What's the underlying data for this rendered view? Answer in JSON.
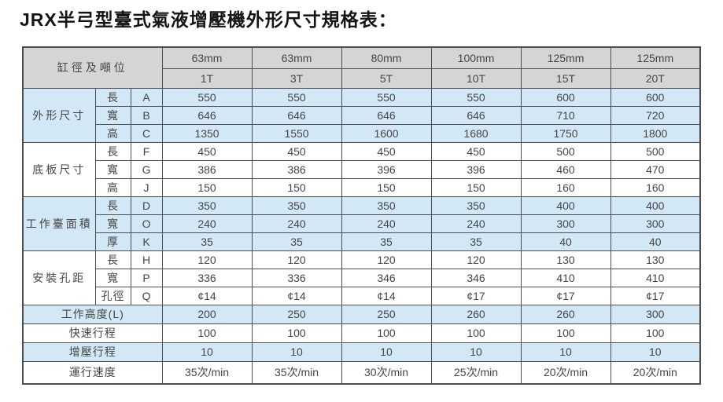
{
  "title": "JRX半弓型臺式氣液增壓機外形尺寸規格表：",
  "colors": {
    "header_bg": "#d5d5d5",
    "blue_row_bg": "#d3e8f6",
    "white_row_bg": "#ffffff",
    "border": "#4d4d4d",
    "text": "#454545",
    "title_text": "#141414"
  },
  "table": {
    "corner_label": "缸徑及噸位",
    "columns": [
      {
        "diameter": "63mm",
        "tonnage": "1T"
      },
      {
        "diameter": "63mm",
        "tonnage": "3T"
      },
      {
        "diameter": "80mm",
        "tonnage": "5T"
      },
      {
        "diameter": "100mm",
        "tonnage": "10T"
      },
      {
        "diameter": "125mm",
        "tonnage": "15T"
      },
      {
        "diameter": "125mm",
        "tonnage": "20T"
      }
    ],
    "groups": [
      {
        "label": "外形尺寸",
        "shade": "blue",
        "rows": [
          {
            "dim": "長",
            "code": "A",
            "values": [
              "550",
              "550",
              "550",
              "550",
              "600",
              "600"
            ]
          },
          {
            "dim": "寬",
            "code": "B",
            "values": [
              "646",
              "646",
              "646",
              "646",
              "710",
              "720"
            ]
          },
          {
            "dim": "高",
            "code": "C",
            "values": [
              "1350",
              "1550",
              "1600",
              "1680",
              "1750",
              "1800"
            ]
          }
        ]
      },
      {
        "label": "底板尺寸",
        "shade": "white",
        "rows": [
          {
            "dim": "長",
            "code": "F",
            "values": [
              "450",
              "450",
              "450",
              "450",
              "500",
              "500"
            ]
          },
          {
            "dim": "寬",
            "code": "G",
            "values": [
              "386",
              "386",
              "396",
              "396",
              "460",
              "470"
            ]
          },
          {
            "dim": "高",
            "code": "J",
            "values": [
              "150",
              "150",
              "150",
              "150",
              "160",
              "160"
            ]
          }
        ]
      },
      {
        "label": "工作臺面積",
        "shade": "blue",
        "rows": [
          {
            "dim": "長",
            "code": "D",
            "values": [
              "350",
              "350",
              "350",
              "350",
              "400",
              "400"
            ]
          },
          {
            "dim": "寬",
            "code": "O",
            "values": [
              "240",
              "240",
              "240",
              "240",
              "300",
              "300"
            ]
          },
          {
            "dim": "厚",
            "code": "K",
            "values": [
              "35",
              "35",
              "35",
              "35",
              "40",
              "40"
            ]
          }
        ]
      },
      {
        "label": "安裝孔距",
        "shade": "white",
        "rows": [
          {
            "dim": "長",
            "code": "H",
            "values": [
              "120",
              "120",
              "120",
              "120",
              "130",
              "130"
            ]
          },
          {
            "dim": "寬",
            "code": "P",
            "values": [
              "336",
              "336",
              "346",
              "346",
              "410",
              "410"
            ]
          },
          {
            "dim": "孔徑",
            "code": "Q",
            "values": [
              "¢14",
              "¢14",
              "¢14",
              "¢17",
              "¢17",
              "¢17"
            ]
          }
        ]
      }
    ],
    "footer_rows": [
      {
        "label": "工作高度(L)",
        "shade": "blue",
        "values": [
          "200",
          "250",
          "250",
          "260",
          "260",
          "300"
        ]
      },
      {
        "label": "快速行程",
        "shade": "white",
        "values": [
          "100",
          "100",
          "100",
          "100",
          "100",
          "100"
        ]
      },
      {
        "label": "增壓行程",
        "shade": "blue",
        "values": [
          "10",
          "10",
          "10",
          "10",
          "10",
          "10"
        ]
      },
      {
        "label": "運行速度",
        "shade": "white",
        "values": [
          "35次/min",
          "35次/min",
          "30次/min",
          "25次/min",
          "20次/min",
          "20次/min"
        ]
      }
    ]
  }
}
